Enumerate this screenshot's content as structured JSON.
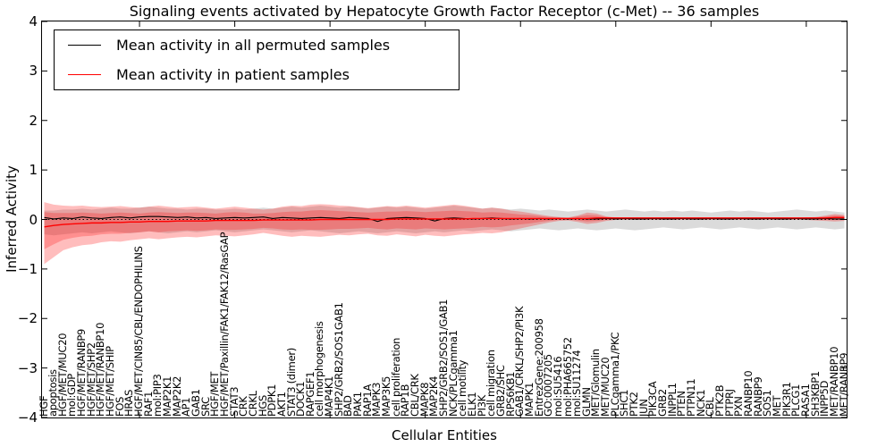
{
  "axes": {
    "xlabel": "Cellular Entities",
    "ylabel": "Inferred Activity",
    "ylim": [
      -4,
      4
    ],
    "yticks": {
      "values": [
        4,
        3,
        2,
        1,
        0,
        -1,
        -2,
        -3,
        -4
      ],
      "labels": [
        "4",
        "3",
        "2",
        "1",
        "0",
        "−1",
        "−2",
        "−3",
        "−4"
      ]
    }
  },
  "legend": {
    "entries": [
      {
        "label": "Mean activity in all permuted samples",
        "color": "#000000"
      },
      {
        "label": "Mean activity in patient samples",
        "color": "#ff0000"
      }
    ]
  },
  "chart_data": {
    "type": "line",
    "title": "Signaling events activated by Hepatocyte Growth Factor Receptor (c-Met) -- 36 samples",
    "xlabel": "Cellular Entities",
    "ylabel": "Inferred Activity",
    "ylim": [
      -4,
      4
    ],
    "grid": false,
    "legend_position": "upper-left",
    "zero_line": 0,
    "xtick_indices": [
      10,
      20,
      30,
      40,
      50,
      60,
      70,
      80
    ],
    "categories": [
      "HGF",
      "apoptosis",
      "HGF/MET/MUC20",
      "mol:GDP",
      "HGF/MET/RANBP9",
      "HGF/MET/SHP2",
      "HGF/MET/RANBP10",
      "HGF/MET/SHIP",
      "FOS",
      "HRAS",
      "HGF/MET/CIN85/CBL/ENDOPHILINS",
      "RAF1",
      "mol:PIP3",
      "MAP2K1",
      "MAP2K2",
      "AP1",
      "GAB1",
      "SRC",
      "HGF/MET",
      "HGF/MET/Paxillin/FAK1/FAK12/RasGAP",
      "STAT3",
      "CRK",
      "CRKL",
      "HGS",
      "PDPK1",
      "AKT1",
      "STAT3 (dimer)",
      "DOCK1",
      "RAPGEF1",
      "cell morphogenesis",
      "MAP4K1",
      "SHP2/GRB2/SOS1GAB1",
      "BAD",
      "PAK1",
      "RAP1A",
      "MAPK3",
      "MAP3K5",
      "cell proliferation",
      "RAP1B",
      "CBL/CRK",
      "MAPK8",
      "MAP2K4",
      "SHP2/GRB2/SOS1/GAB1",
      "NCK/PLCgamma1",
      "cell motility",
      "ELK1",
      "PI3K",
      "cell migration",
      "GRB2/SHC",
      "RPS6KB1",
      "GAB1/CRKL/SHP2/PI3K",
      "MAPK1",
      "EntrezGene:200958",
      "GO:0007205",
      "mol:SU5416",
      "mol:PHA665752",
      "mol:SU11274",
      "GLMN",
      "MET/Glomulin",
      "MET/MUC20",
      "PLCgamma1/PKC",
      "SHC1",
      "PTK2",
      "JUN",
      "PIK3CA",
      "GRB2",
      "INPPL1",
      "PTEN",
      "PTPN11",
      "NCK1",
      "CBL",
      "PTK2B",
      "PTPRJ",
      "PXN",
      "RANBP10",
      "RANBP9",
      "SOS1",
      "MET",
      "PIK3R1",
      "PLCG1",
      "RASA1",
      "SH3KBP1",
      "INPP5D",
      "MET/RANBP10",
      "MET/RANBP9"
    ],
    "series": [
      {
        "name": "Mean activity in all permuted samples",
        "color": "#000000",
        "width": 1.1,
        "values": [
          0.04,
          0.01,
          0.03,
          0.02,
          0.05,
          0.03,
          0.02,
          0.04,
          0.05,
          0.03,
          0.05,
          0.06,
          0.06,
          0.05,
          0.04,
          0.05,
          0.03,
          0.04,
          0.02,
          0.03,
          0.04,
          0.03,
          0.04,
          0.05,
          0.02,
          0.04,
          0.03,
          0.02,
          0.03,
          0.04,
          0.03,
          0.02,
          0.04,
          0.03,
          0.02,
          -0.04,
          0.02,
          0.03,
          0.04,
          0.03,
          0.02,
          -0.03,
          0.02,
          0.03,
          0.02,
          0.01,
          0.02,
          0.03,
          0.02,
          0.01,
          0.02,
          0.01,
          0.02,
          0.01,
          0.02,
          0.01,
          0.02,
          0.01,
          0.01,
          0.02,
          0.01,
          0.02,
          0.01,
          0.01,
          0.02,
          0.01,
          0.01,
          0.02,
          0.01,
          0.01,
          0.02,
          0.01,
          0.01,
          0.02,
          0.01,
          0.01,
          0.02,
          0.01,
          0.01,
          0.02,
          0.01,
          0.01,
          0.02,
          0.01,
          0.01
        ]
      },
      {
        "name": "Mean activity in patient samples",
        "color": "#ff0000",
        "width": 1.4,
        "values": [
          -0.15,
          -0.12,
          -0.1,
          -0.09,
          -0.08,
          -0.07,
          -0.07,
          -0.06,
          -0.06,
          -0.05,
          -0.05,
          -0.04,
          -0.04,
          -0.04,
          -0.03,
          -0.03,
          -0.03,
          -0.03,
          -0.02,
          -0.02,
          -0.02,
          -0.02,
          -0.02,
          -0.01,
          -0.01,
          -0.01,
          -0.01,
          -0.01,
          -0.01,
          0.0,
          0.0,
          0.0,
          0.0,
          0.0,
          0.0,
          0.0,
          0.0,
          0.01,
          0.01,
          0.01,
          0.01,
          0.01,
          0.01,
          0.01,
          0.01,
          0.02,
          0.02,
          0.02,
          0.02,
          0.02,
          0.02,
          0.02,
          0.02,
          0.02,
          0.02,
          0.02,
          0.02,
          0.02,
          0.03,
          0.03,
          0.03,
          0.03,
          0.03,
          0.03,
          0.03,
          0.03,
          0.03,
          0.03,
          0.03,
          0.03,
          0.03,
          0.03,
          0.03,
          0.03,
          0.03,
          0.03,
          0.03,
          0.03,
          0.03,
          0.03,
          0.03,
          0.03,
          0.03,
          0.04,
          0.04
        ]
      }
    ],
    "bands": [
      {
        "name": "permuted-samples-range",
        "color": "#000000",
        "opacity": 0.14,
        "upper": [
          0.18,
          0.18,
          0.2,
          0.2,
          0.22,
          0.2,
          0.22,
          0.24,
          0.22,
          0.22,
          0.24,
          0.26,
          0.24,
          0.22,
          0.22,
          0.2,
          0.22,
          0.22,
          0.2,
          0.2,
          0.22,
          0.2,
          0.22,
          0.24,
          0.22,
          0.24,
          0.26,
          0.24,
          0.26,
          0.28,
          0.26,
          0.24,
          0.26,
          0.24,
          0.22,
          0.24,
          0.26,
          0.24,
          0.26,
          0.24,
          0.22,
          0.24,
          0.26,
          0.28,
          0.26,
          0.24,
          0.22,
          0.24,
          0.22,
          0.2,
          0.22,
          0.2,
          0.18,
          0.2,
          0.18,
          0.16,
          0.18,
          0.2,
          0.18,
          0.16,
          0.18,
          0.2,
          0.18,
          0.16,
          0.18,
          0.16,
          0.18,
          0.16,
          0.18,
          0.16,
          0.14,
          0.16,
          0.18,
          0.16,
          0.18,
          0.16,
          0.14,
          0.16,
          0.18,
          0.2,
          0.18,
          0.16,
          0.18,
          0.16,
          0.14
        ],
        "lower": [
          -0.3,
          -0.32,
          -0.3,
          -0.28,
          -0.26,
          -0.28,
          -0.26,
          -0.24,
          -0.26,
          -0.28,
          -0.26,
          -0.24,
          -0.26,
          -0.28,
          -0.26,
          -0.24,
          -0.26,
          -0.24,
          -0.22,
          -0.24,
          -0.26,
          -0.24,
          -0.22,
          -0.2,
          -0.22,
          -0.24,
          -0.26,
          -0.24,
          -0.22,
          -0.24,
          -0.26,
          -0.28,
          -0.26,
          -0.24,
          -0.26,
          -0.28,
          -0.26,
          -0.24,
          -0.26,
          -0.28,
          -0.26,
          -0.24,
          -0.26,
          -0.24,
          -0.22,
          -0.24,
          -0.22,
          -0.2,
          -0.22,
          -0.24,
          -0.22,
          -0.2,
          -0.18,
          -0.2,
          -0.22,
          -0.2,
          -0.18,
          -0.2,
          -0.22,
          -0.2,
          -0.18,
          -0.2,
          -0.22,
          -0.2,
          -0.18,
          -0.16,
          -0.18,
          -0.2,
          -0.18,
          -0.16,
          -0.18,
          -0.2,
          -0.18,
          -0.16,
          -0.18,
          -0.2,
          -0.18,
          -0.16,
          -0.18,
          -0.2,
          -0.18,
          -0.16,
          -0.18,
          -0.2,
          -0.18
        ]
      },
      {
        "name": "patient-samples-range-outer",
        "color": "#ff0000",
        "opacity": 0.26,
        "upper": [
          0.35,
          0.3,
          0.28,
          0.27,
          0.28,
          0.26,
          0.25,
          0.26,
          0.27,
          0.25,
          0.24,
          0.26,
          0.28,
          0.26,
          0.24,
          0.25,
          0.26,
          0.24,
          0.22,
          0.24,
          0.26,
          0.24,
          0.22,
          0.2,
          0.22,
          0.26,
          0.28,
          0.27,
          0.3,
          0.31,
          0.3,
          0.28,
          0.27,
          0.25,
          0.23,
          0.25,
          0.27,
          0.26,
          0.28,
          0.26,
          0.24,
          0.26,
          0.28,
          0.3,
          0.28,
          0.25,
          0.22,
          0.24,
          0.22,
          0.18,
          0.16,
          0.13,
          0.1,
          0.07,
          0.05,
          0.04,
          0.08,
          0.14,
          0.12,
          0.06,
          0.04,
          0.03,
          0.03,
          0.03,
          0.03,
          0.03,
          0.03,
          0.03,
          0.03,
          0.03,
          0.03,
          0.03,
          0.03,
          0.03,
          0.03,
          0.03,
          0.03,
          0.03,
          0.03,
          0.03,
          0.04,
          0.05,
          0.08,
          0.11,
          0.09
        ],
        "lower": [
          -0.9,
          -0.76,
          -0.62,
          -0.56,
          -0.52,
          -0.5,
          -0.46,
          -0.44,
          -0.45,
          -0.42,
          -0.4,
          -0.38,
          -0.4,
          -0.38,
          -0.36,
          -0.35,
          -0.36,
          -0.34,
          -0.32,
          -0.33,
          -0.34,
          -0.32,
          -0.3,
          -0.27,
          -0.3,
          -0.33,
          -0.35,
          -0.33,
          -0.34,
          -0.35,
          -0.33,
          -0.31,
          -0.32,
          -0.3,
          -0.29,
          -0.32,
          -0.33,
          -0.3,
          -0.32,
          -0.34,
          -0.31,
          -0.33,
          -0.34,
          -0.32,
          -0.3,
          -0.29,
          -0.27,
          -0.28,
          -0.26,
          -0.22,
          -0.18,
          -0.14,
          -0.1,
          -0.06,
          -0.03,
          -0.02,
          -0.05,
          -0.09,
          -0.07,
          -0.03,
          -0.01,
          -0.01,
          -0.01,
          -0.01,
          -0.01,
          -0.01,
          -0.01,
          -0.01,
          -0.01,
          -0.01,
          -0.01,
          -0.01,
          -0.01,
          -0.01,
          -0.01,
          -0.01,
          -0.01,
          -0.01,
          -0.01,
          -0.01,
          -0.01,
          -0.02,
          -0.03,
          -0.04,
          -0.03
        ]
      },
      {
        "name": "patient-samples-range-inner",
        "color": "#ff0000",
        "opacity": 0.24,
        "upper": [
          0.15,
          0.13,
          0.13,
          0.13,
          0.14,
          0.13,
          0.12,
          0.13,
          0.14,
          0.13,
          0.12,
          0.14,
          0.15,
          0.14,
          0.13,
          0.14,
          0.14,
          0.13,
          0.12,
          0.14,
          0.15,
          0.14,
          0.12,
          0.12,
          0.13,
          0.15,
          0.16,
          0.16,
          0.18,
          0.19,
          0.18,
          0.17,
          0.16,
          0.15,
          0.14,
          0.15,
          0.16,
          0.16,
          0.17,
          0.16,
          0.15,
          0.16,
          0.17,
          0.18,
          0.17,
          0.16,
          0.14,
          0.15,
          0.14,
          0.12,
          0.1,
          0.09,
          0.07,
          0.05,
          0.04,
          0.03,
          0.06,
          0.09,
          0.08,
          0.05,
          0.03,
          0.03,
          0.03,
          0.03,
          0.03,
          0.03,
          0.03,
          0.03,
          0.03,
          0.03,
          0.03,
          0.03,
          0.03,
          0.03,
          0.03,
          0.03,
          0.03,
          0.03,
          0.03,
          0.03,
          0.04,
          0.04,
          0.06,
          0.08,
          0.07
        ],
        "lower": [
          -0.6,
          -0.5,
          -0.41,
          -0.37,
          -0.34,
          -0.33,
          -0.3,
          -0.29,
          -0.29,
          -0.27,
          -0.26,
          -0.24,
          -0.26,
          -0.24,
          -0.23,
          -0.22,
          -0.23,
          -0.22,
          -0.2,
          -0.21,
          -0.21,
          -0.2,
          -0.19,
          -0.17,
          -0.18,
          -0.2,
          -0.21,
          -0.2,
          -0.21,
          -0.21,
          -0.2,
          -0.19,
          -0.19,
          -0.18,
          -0.17,
          -0.19,
          -0.2,
          -0.18,
          -0.19,
          -0.2,
          -0.18,
          -0.19,
          -0.2,
          -0.19,
          -0.18,
          -0.17,
          -0.15,
          -0.16,
          -0.15,
          -0.12,
          -0.1,
          -0.08,
          -0.05,
          -0.03,
          -0.01,
          0.0,
          -0.02,
          -0.04,
          -0.03,
          -0.01,
          0.01,
          0.01,
          0.01,
          0.01,
          0.01,
          0.01,
          0.01,
          0.01,
          0.01,
          0.01,
          0.01,
          0.01,
          0.01,
          0.01,
          0.01,
          0.01,
          0.01,
          0.01,
          0.01,
          0.01,
          0.01,
          0.0,
          -0.01,
          -0.01,
          0.0
        ]
      }
    ]
  }
}
